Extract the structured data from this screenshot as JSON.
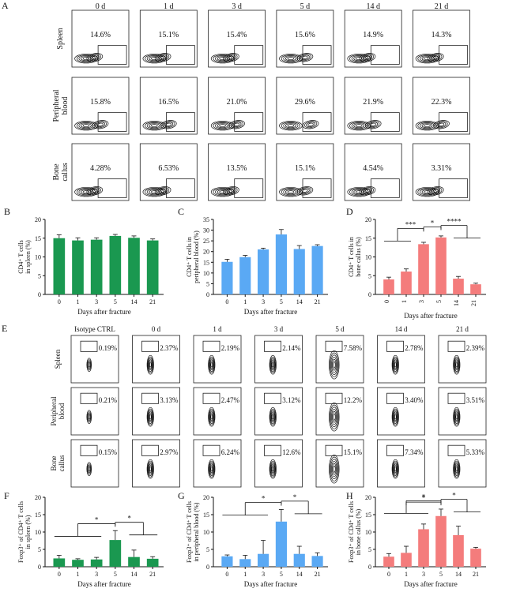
{
  "panelA": {
    "letter": "A",
    "timepoints": [
      "0 d",
      "1 d",
      "3 d",
      "5 d",
      "14 d",
      "21 d"
    ],
    "rows": [
      {
        "tissue": "Spleen",
        "values": [
          "14.6%",
          "15.1%",
          "15.4%",
          "15.6%",
          "14.9%",
          "14.3%"
        ]
      },
      {
        "tissue": "Peripheral blood",
        "values": [
          "15.8%",
          "16.5%",
          "21.0%",
          "29.6%",
          "21.9%",
          "22.3%"
        ]
      },
      {
        "tissue": "Bone callus",
        "values": [
          "4.28%",
          "6.53%",
          "13.5%",
          "15.1%",
          "4.54%",
          "3.31%"
        ]
      }
    ]
  },
  "panelE": {
    "letter": "E",
    "columns": [
      "Isotype CTRL",
      "0 d",
      "1 d",
      "3 d",
      "5 d",
      "14 d",
      "21 d"
    ],
    "rows": [
      {
        "tissue": "Spleen",
        "values": [
          "0.19%",
          "2.37%",
          "2.19%",
          "2.14%",
          "7.58%",
          "2.78%",
          "2.39%"
        ]
      },
      {
        "tissue": "Peripheral blood",
        "values": [
          "0.21%",
          "3.13%",
          "2.47%",
          "3.12%",
          "12.2%",
          "3.40%",
          "3.51%"
        ]
      },
      {
        "tissue": "Bone callus",
        "values": [
          "0.15%",
          "2.97%",
          "6.24%",
          "12.6%",
          "15.1%",
          "7.34%",
          "5.33%"
        ]
      }
    ]
  },
  "chart_data": [
    {
      "panel": "B",
      "type": "bar",
      "color": "#1a9850",
      "categories": [
        "0",
        "1",
        "3",
        "5",
        "14",
        "21"
      ],
      "values": [
        15.0,
        14.4,
        14.6,
        15.6,
        15.1,
        14.4
      ],
      "errors": [
        0.9,
        0.7,
        0.5,
        0.4,
        0.5,
        0.4
      ],
      "ylabel_lines": [
        "CD4⁺ T cells",
        "in spleen (%)"
      ],
      "xlabel": "Days after fracture",
      "ylim": [
        0,
        20
      ],
      "yticks": [
        0,
        5,
        10,
        15,
        20
      ],
      "sig": []
    },
    {
      "panel": "C",
      "type": "bar",
      "color": "#5aa9f4",
      "categories": [
        "0",
        "1",
        "3",
        "5",
        "14",
        "21"
      ],
      "values": [
        15.2,
        17.4,
        21.0,
        28.0,
        21.2,
        22.6
      ],
      "errors": [
        1.2,
        0.8,
        0.6,
        2.3,
        1.6,
        0.6
      ],
      "ylabel_lines": [
        "CD4⁺ T cells in",
        "peripheral blood (%)"
      ],
      "xlabel": "Days after fracture",
      "ylim": [
        0,
        35
      ],
      "yticks": [
        0,
        5,
        10,
        15,
        20,
        25,
        30,
        35
      ],
      "sig": []
    },
    {
      "panel": "D",
      "type": "bar",
      "color": "#f47c7c",
      "categories": [
        "0",
        "1",
        "3",
        "5",
        "14",
        "21"
      ],
      "values": [
        4.0,
        6.1,
        13.4,
        15.2,
        4.2,
        2.7
      ],
      "errors": [
        0.6,
        0.7,
        0.5,
        0.4,
        0.6,
        0.3
      ],
      "ylabel_lines": [
        "CD4⁺ T cells in",
        "bone callus (%)"
      ],
      "xlabel": "Days after fracture",
      "ylim": [
        0,
        20
      ],
      "yticks": [
        0,
        5,
        10,
        15,
        20
      ],
      "sig": [
        {
          "from": 0,
          "to": 2,
          "label": "***",
          "left_group": [
            0,
            1
          ]
        },
        {
          "from": 2,
          "to": 3,
          "label": "*"
        },
        {
          "from": 3,
          "to": 4,
          "label": "****",
          "right_group": [
            4,
            5
          ]
        }
      ]
    },
    {
      "panel": "F",
      "type": "bar",
      "color": "#1a9850",
      "categories": [
        "0",
        "1",
        "3",
        "5",
        "14",
        "21"
      ],
      "values": [
        2.4,
        2.0,
        2.1,
        7.7,
        2.8,
        2.3
      ],
      "errors": [
        0.9,
        0.3,
        0.6,
        2.7,
        2.0,
        0.6
      ],
      "ylabel_lines": [
        "Foxp3⁺ of CD4⁺ T cells",
        "in spleen (%)"
      ],
      "xlabel": "Days after fracture",
      "ylim": [
        0,
        20
      ],
      "yticks": [
        0,
        5,
        10,
        15,
        20
      ],
      "sig": [
        {
          "from": 3,
          "to": 3,
          "label": "*",
          "left_group": [
            0,
            1,
            2
          ]
        },
        {
          "from": 3,
          "to": 3,
          "label": "*",
          "right_group": [
            4,
            5
          ]
        }
      ]
    },
    {
      "panel": "G",
      "type": "bar",
      "color": "#5aa9f4",
      "categories": [
        "0",
        "1",
        "3",
        "5",
        "14",
        "21"
      ],
      "values": [
        3.0,
        2.2,
        3.7,
        13.0,
        3.7,
        3.1
      ],
      "errors": [
        0.4,
        1.1,
        3.9,
        3.5,
        2.2,
        0.9
      ],
      "ylabel_lines": [
        "Foxp3⁺ of CD4⁺ T cells",
        "in peripheral blood (%)"
      ],
      "xlabel": "Days after fracture",
      "ylim": [
        0,
        20
      ],
      "yticks": [
        0,
        5,
        10,
        15,
        20
      ],
      "sig": [
        {
          "from": 3,
          "to": 3,
          "label": "*",
          "left_group": [
            0,
            1,
            2
          ]
        },
        {
          "from": 3,
          "to": 3,
          "label": "*",
          "right_group": [
            4,
            5
          ]
        }
      ]
    },
    {
      "panel": "H",
      "type": "bar",
      "color": "#f47c7c",
      "categories": [
        "0",
        "1",
        "3",
        "5",
        "14",
        "21"
      ],
      "values": [
        2.9,
        4.0,
        10.8,
        14.6,
        9.1,
        5.2
      ],
      "errors": [
        0.9,
        1.9,
        1.5,
        2.0,
        2.6,
        0.4
      ],
      "ylabel_lines": [
        "Foxp3⁺ of CD4⁺ T cells",
        "in bone callus (%)"
      ],
      "xlabel": "Days after fracture",
      "ylim": [
        0,
        20
      ],
      "yticks": [
        0,
        5,
        10,
        15,
        20
      ],
      "sig": [
        {
          "from": 1,
          "to": 3,
          "label": "*"
        },
        {
          "from": 0,
          "to": 3,
          "label": "*",
          "left_group": [
            0,
            1,
            2
          ]
        },
        {
          "from": 3,
          "to": 4,
          "label": "*",
          "right_group": [
            4,
            5
          ]
        }
      ]
    }
  ]
}
